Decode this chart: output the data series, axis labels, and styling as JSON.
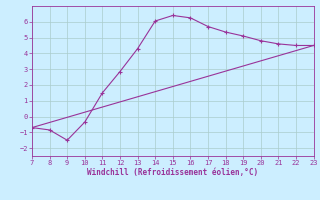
{
  "xlabel": "Windchill (Refroidissement éolien,°C)",
  "background_color": "#cceeff",
  "line_color": "#993399",
  "grid_color": "#aacccc",
  "spine_color": "#993399",
  "xlim": [
    7,
    23
  ],
  "ylim": [
    -2.5,
    7.0
  ],
  "xticks": [
    7,
    8,
    9,
    10,
    11,
    12,
    13,
    14,
    15,
    16,
    17,
    18,
    19,
    20,
    21,
    22,
    23
  ],
  "yticks": [
    -2,
    -1,
    0,
    1,
    2,
    3,
    4,
    5,
    6
  ],
  "curve1_x": [
    7,
    8,
    9,
    10,
    11,
    12,
    13,
    14,
    15,
    16,
    17,
    18,
    19,
    20,
    21,
    22,
    23
  ],
  "curve1_y": [
    -0.7,
    -0.85,
    -1.5,
    -0.35,
    1.5,
    2.85,
    4.3,
    6.05,
    6.4,
    6.25,
    5.7,
    5.35,
    5.1,
    4.8,
    4.6,
    4.5,
    4.5
  ],
  "curve2_x": [
    7,
    23
  ],
  "curve2_y": [
    -0.7,
    4.5
  ],
  "tick_fontsize": 5,
  "xlabel_fontsize": 5.5,
  "marker_size": 3,
  "line_width": 0.8
}
